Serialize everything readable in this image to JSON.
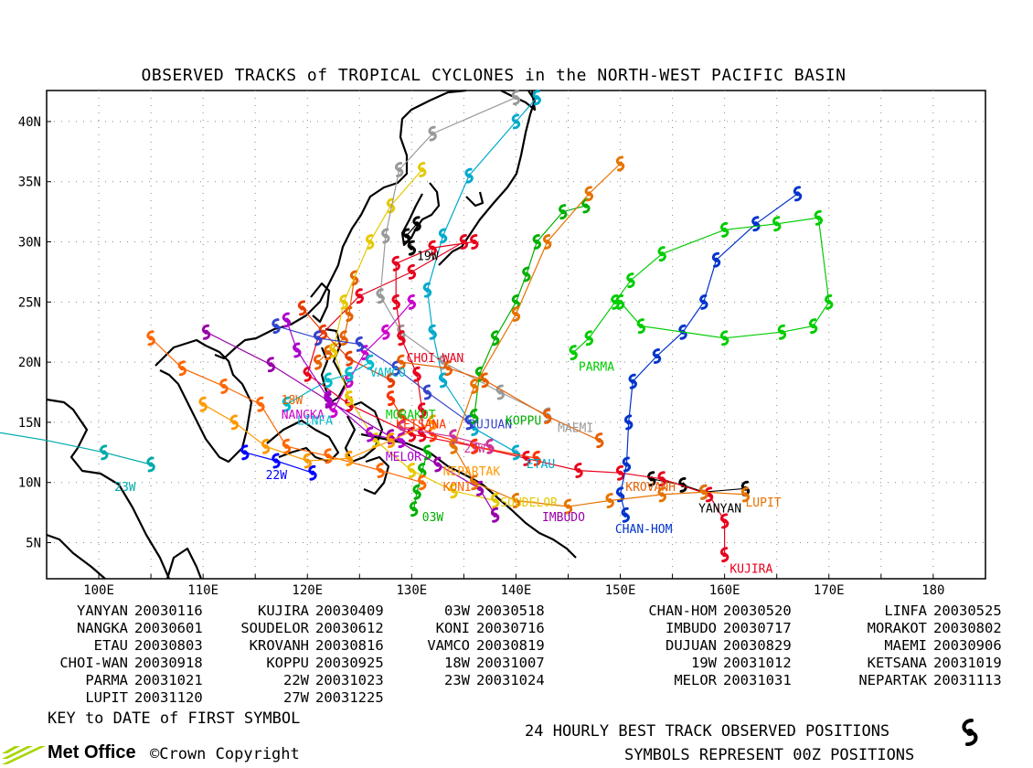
{
  "title": "OBSERVED TRACKS of TROPICAL CYCLONES in the NORTH-WEST PACIFIC BASIN",
  "lat_labels": [
    "40N",
    "35N",
    "30N",
    "25N",
    "20N",
    "15N",
    "10N",
    "5N"
  ],
  "lon_labels": [
    "100E",
    "110E",
    "120E",
    "130E",
    "140E",
    "150E",
    "160E",
    "170E",
    "180"
  ],
  "storms": [
    {
      "name": "YANYAN",
      "date": "20030116",
      "color": "#000000",
      "track": [
        [
          162,
          9.5
        ],
        [
          158,
          9.2
        ],
        [
          156,
          9.8
        ],
        [
          153,
          10.3
        ]
      ]
    },
    {
      "name": "KUJIRA",
      "date": "20030409",
      "color": "#e8001c",
      "track": [
        [
          160,
          4
        ],
        [
          160,
          6.8
        ],
        [
          158.5,
          9
        ],
        [
          154,
          10.3
        ],
        [
          150,
          10.8
        ],
        [
          146,
          11
        ],
        [
          141,
          12
        ],
        [
          136,
          13
        ],
        [
          130,
          14
        ],
        [
          124,
          16.5
        ],
        [
          120,
          19
        ],
        [
          121,
          22
        ],
        [
          125,
          25.5
        ],
        [
          130,
          27.5
        ],
        [
          135,
          30
        ]
      ]
    },
    {
      "name": "03W",
      "date": "20030518",
      "color": "#00b000",
      "track": [
        [
          130.2,
          7.8
        ],
        [
          130.5,
          9.2
        ],
        [
          131,
          11
        ],
        [
          131.5,
          12.5
        ]
      ]
    },
    {
      "name": "CHAN-HOM",
      "date": "20030520",
      "color": "#0033cc",
      "track": [
        [
          150.5,
          7.3
        ],
        [
          150,
          9
        ],
        [
          150.6,
          11.5
        ],
        [
          150.8,
          15
        ],
        [
          151.2,
          18.4
        ],
        [
          153.5,
          20.5
        ],
        [
          156,
          22.5
        ],
        [
          158,
          25
        ],
        [
          159.2,
          28.5
        ],
        [
          163,
          31.5
        ],
        [
          167,
          34
        ]
      ]
    },
    {
      "name": "LINFA",
      "date": "20030525",
      "color": "#e66000",
      "track": [
        [
          121,
          20
        ],
        [
          122,
          20.8
        ],
        [
          123.5,
          22
        ],
        [
          124,
          24
        ],
        [
          124.5,
          27
        ]
      ]
    },
    {
      "name": "NANGKA",
      "date": "20030601",
      "color": "#cc00cc",
      "track": [
        [
          122.5,
          16
        ],
        [
          124,
          18.5
        ],
        [
          125.5,
          20.8
        ],
        [
          127.5,
          22.5
        ],
        [
          130,
          25
        ]
      ]
    },
    {
      "name": "SOUDELOR",
      "date": "20030612",
      "color": "#e6c800",
      "track": [
        [
          138,
          8.5
        ],
        [
          134,
          9.3
        ],
        [
          130,
          11
        ],
        [
          126.5,
          13.5
        ],
        [
          124,
          17
        ],
        [
          122.5,
          21
        ],
        [
          123.5,
          25
        ],
        [
          126,
          30
        ],
        [
          128,
          33
        ],
        [
          131,
          36
        ]
      ]
    },
    {
      "name": "KONI",
      "date": "20030716",
      "color": "#ff6600",
      "track": [
        [
          131,
          10
        ],
        [
          127,
          11
        ],
        [
          122,
          12.2
        ],
        [
          118,
          13
        ],
        [
          115.5,
          16.5
        ],
        [
          112,
          18
        ],
        [
          108,
          19.5
        ],
        [
          105,
          22
        ]
      ]
    },
    {
      "name": "IMBUDO",
      "date": "20030717",
      "color": "#9900aa",
      "track": [
        [
          138,
          7.3
        ],
        [
          136.5,
          9.5
        ],
        [
          132.5,
          11.5
        ],
        [
          128,
          13.8
        ],
        [
          122,
          16.8
        ],
        [
          116.5,
          19.8
        ],
        [
          110.3,
          22.5
        ]
      ]
    },
    {
      "name": "MORAKOT",
      "date": "20030802",
      "color": "#e63c00",
      "track": [
        [
          128,
          18.5
        ],
        [
          124,
          20.3
        ],
        [
          121.5,
          22.5
        ],
        [
          119.5,
          24.5
        ]
      ]
    },
    {
      "name": "ETAU",
      "date": "20030803",
      "color": "#00aacc",
      "track": [
        [
          140,
          12.5
        ],
        [
          136,
          14.5
        ],
        [
          133,
          18.5
        ],
        [
          132,
          22.5
        ],
        [
          131.5,
          26
        ],
        [
          133,
          30.5
        ],
        [
          135.5,
          35.5
        ],
        [
          140,
          40
        ],
        [
          142,
          42
        ]
      ]
    },
    {
      "name": "VAMCO",
      "date": "20030819",
      "color": "#00bbcc",
      "track": [
        [
          126,
          20
        ],
        [
          124,
          19
        ],
        [
          122,
          18.5
        ],
        [
          118,
          16.5
        ]
      ]
    },
    {
      "name": "DUJUAN",
      "date": "20030829",
      "color": "#3344cc",
      "track": [
        [
          135.5,
          15
        ],
        [
          131.5,
          17.5
        ],
        [
          128.5,
          19.5
        ],
        [
          125,
          21.5
        ],
        [
          121,
          22
        ],
        [
          117,
          23
        ]
      ]
    },
    {
      "name": "MAEMI",
      "date": "20030906",
      "color": "#999999",
      "track": [
        [
          143,
          15.6
        ],
        [
          138.5,
          17.5
        ],
        [
          133,
          20
        ],
        [
          129,
          22.5
        ],
        [
          127,
          25.5
        ],
        [
          127.5,
          30.5
        ],
        [
          128.8,
          36
        ],
        [
          132,
          39
        ],
        [
          140,
          42
        ]
      ]
    },
    {
      "name": "CHOI-WAN",
      "date": "20030918",
      "color": "#e8001c",
      "track": [
        [
          131,
          14
        ],
        [
          131,
          16
        ],
        [
          130.5,
          19
        ],
        [
          129,
          22
        ],
        [
          128.5,
          25
        ],
        [
          128.5,
          28.2
        ],
        [
          132,
          29.5
        ],
        [
          136,
          30
        ]
      ]
    },
    {
      "name": "KOPPU",
      "date": "20030925",
      "color": "#00b000",
      "track": [
        [
          136,
          15.5
        ],
        [
          136.5,
          19
        ],
        [
          138,
          22
        ],
        [
          140,
          25
        ],
        [
          141,
          27.3
        ],
        [
          142,
          30
        ],
        [
          144.5,
          32.5
        ],
        [
          146.7,
          33
        ]
      ]
    },
    {
      "name": "KETSANA",
      "date": "20031019",
      "color": "#ff3300",
      "track": [
        [
          142,
          12
        ],
        [
          136,
          13
        ],
        [
          132,
          14
        ],
        [
          129,
          15.5
        ],
        [
          128,
          17
        ]
      ]
    },
    {
      "name": "PARMA",
      "date": "20031021",
      "color": "#00cc00",
      "track": [
        [
          145.5,
          20.8
        ],
        [
          147,
          22
        ],
        [
          149.5,
          25
        ],
        [
          151,
          26.8
        ],
        [
          154,
          29
        ],
        [
          160,
          31
        ],
        [
          165,
          31.5
        ],
        [
          169,
          32
        ],
        [
          170,
          25
        ],
        [
          168.5,
          23
        ],
        [
          165.5,
          22.5
        ],
        [
          160,
          22
        ],
        [
          152,
          23
        ],
        [
          150,
          25
        ]
      ]
    },
    {
      "name": "22W",
      "date": "20031023",
      "color": "#0000ff",
      "track": [
        [
          120.5,
          10.8
        ],
        [
          117,
          11.8
        ],
        [
          114,
          12.5
        ]
      ]
    },
    {
      "name": "27W",
      "date": "20031225",
      "color": "#cc3399",
      "track": [
        [
          137.5,
          13
        ],
        [
          134,
          13.8
        ],
        [
          129,
          14.5
        ]
      ]
    },
    {
      "name": "18W",
      "date": "20031007",
      "color": "#e66000",
      "track": [
        [
          148,
          13.5
        ],
        [
          143,
          15.5
        ],
        [
          137,
          18.5
        ],
        [
          133.5,
          19.5
        ],
        [
          129,
          20
        ]
      ]
    },
    {
      "name": "19W",
      "date": "20031012",
      "color": "#000000",
      "track": [
        [
          130,
          29.5
        ],
        [
          129.5,
          30.5
        ],
        [
          130.5,
          31.5
        ]
      ]
    },
    {
      "name": "23W",
      "date": "20031024",
      "color": "#00aaaa",
      "track": [
        [
          105,
          11.5
        ],
        [
          100.5,
          12.5
        ],
        [
          95,
          13.5
        ],
        [
          88,
          14.5
        ]
      ]
    },
    {
      "name": "MELOR",
      "date": "20031031",
      "color": "#aa00cc",
      "track": [
        [
          129,
          13.5
        ],
        [
          126,
          14
        ],
        [
          122,
          17
        ],
        [
          119,
          21
        ],
        [
          118,
          23.5
        ]
      ]
    },
    {
      "name": "NEPARTAK",
      "date": "20031113",
      "color": "#ff9900",
      "track": [
        [
          132,
          15
        ],
        [
          128,
          13.5
        ],
        [
          124,
          12
        ],
        [
          120,
          11.8
        ],
        [
          116,
          13
        ],
        [
          113,
          15
        ],
        [
          110,
          16.5
        ]
      ]
    },
    {
      "name": "LUPIT",
      "date": "20031120",
      "color": "#e67300",
      "track": [
        [
          162,
          9
        ],
        [
          158,
          9.2
        ],
        [
          154,
          9
        ],
        [
          149,
          8.5
        ],
        [
          145,
          8
        ],
        [
          140,
          8.5
        ],
        [
          136,
          10
        ],
        [
          134,
          13
        ],
        [
          136,
          18
        ],
        [
          140,
          24
        ],
        [
          143,
          30
        ],
        [
          147,
          34
        ],
        [
          150,
          36.5
        ]
      ]
    }
  ],
  "track_labels": [
    {
      "text": "YANYAN",
      "color": "#000000",
      "lon": 157.5,
      "lat": 7.5
    },
    {
      "text": "KUJIRA",
      "color": "#e8001c",
      "lon": 160.5,
      "lat": 2.5
    },
    {
      "text": "03W",
      "color": "#00b000",
      "lon": 131,
      "lat": 6.8
    },
    {
      "text": "CHAN-HOM",
      "color": "#0033cc",
      "lon": 149.5,
      "lat": 5.8
    },
    {
      "text": "LUPIT",
      "color": "#e67300",
      "lon": 162,
      "lat": 8
    },
    {
      "text": "KROVANH",
      "color": "#e66000",
      "lon": 150.5,
      "lat": 9.3
    },
    {
      "text": "SOUDELOR",
      "color": "#e6c800",
      "lon": 138.5,
      "lat": 8
    },
    {
      "text": "IMBUDO",
      "color": "#9900aa",
      "lon": 142.5,
      "lat": 6.8
    },
    {
      "text": "KONI",
      "color": "#ff6600",
      "lon": 133,
      "lat": 9.3
    },
    {
      "text": "NEPARTAK",
      "color": "#ff9900",
      "lon": 133,
      "lat": 10.6
    },
    {
      "text": "MELOR",
      "color": "#aa00cc",
      "lon": 127.5,
      "lat": 11.8
    },
    {
      "text": "27W",
      "color": "#cc3399",
      "lon": 135,
      "lat": 12.5
    },
    {
      "text": "ETAU",
      "color": "#00aacc",
      "lon": 141,
      "lat": 11.2
    },
    {
      "text": "KETSANA",
      "color": "#ff3300",
      "lon": 128.5,
      "lat": 14.5
    },
    {
      "text": "DUJUAN",
      "color": "#3344cc",
      "lon": 135.5,
      "lat": 14.5
    },
    {
      "text": "MORAKOT",
      "color": "#00cc00",
      "lon": 127.5,
      "lat": 15.3
    },
    {
      "text": "KOPPU",
      "color": "#00b000",
      "lon": 139,
      "lat": 14.8
    },
    {
      "text": "MAEMI",
      "color": "#999999",
      "lon": 144,
      "lat": 14.2
    },
    {
      "text": "PARMA",
      "color": "#00cc00",
      "lon": 146,
      "lat": 19.3
    },
    {
      "text": "CHOI-WAN",
      "color": "#e8001c",
      "lon": 129.5,
      "lat": 20
    },
    {
      "text": "VAMCO",
      "color": "#00bbcc",
      "lon": 126,
      "lat": 18.8
    },
    {
      "text": "19W",
      "color": "#000000",
      "lon": 130.5,
      "lat": 28.5
    },
    {
      "text": "18W",
      "color": "#e66000",
      "lon": 117.5,
      "lat": 16.5
    },
    {
      "text": "NANGKA",
      "color": "#cc00cc",
      "lon": 117.5,
      "lat": 15.3
    },
    {
      "text": "LINFA",
      "color": "#00bbcc",
      "lon": 119,
      "lat": 14.8
    },
    {
      "text": "22W",
      "color": "#0000ff",
      "lon": 116,
      "lat": 10.3
    },
    {
      "text": "23W",
      "color": "#00aaaa",
      "lon": 101.5,
      "lat": 9.3
    }
  ],
  "key": [
    [
      "YANYAN",
      "20030116",
      "KUJIRA",
      "20030409",
      "03W",
      "20030518",
      "CHAN-HOM",
      "20030520",
      "LINFA",
      "20030525"
    ],
    [
      "NANGKA",
      "20030601",
      "SOUDELOR",
      "20030612",
      "KONI",
      "20030716",
      "IMBUDO",
      "20030717",
      "MORAKOT",
      "20030802"
    ],
    [
      "ETAU",
      "20030803",
      "KROVANH",
      "20030816",
      "VAMCO",
      "20030819",
      "DUJUAN",
      "20030829",
      "MAEMI",
      "20030906"
    ],
    [
      "CHOI-WAN",
      "20030918",
      "KOPPU",
      "20030925",
      "18W",
      "20031007",
      "19W",
      "20031012",
      "KETSANA",
      "20031019"
    ],
    [
      "PARMA",
      "20031021",
      "22W",
      "20031023",
      "23W",
      "20031024",
      "MELOR",
      "20031031",
      "NEPARTAK",
      "20031113"
    ],
    [
      "LUPIT",
      "20031120",
      "27W",
      "20031225"
    ]
  ],
  "footer": {
    "key_to_date": "KEY to DATE of FIRST SYMBOL",
    "best_track": "24 HOURLY BEST TRACK OBSERVED POSITIONS",
    "symbols": "SYMBOLS REPRESENT 00Z POSITIONS",
    "logo": "Met Office",
    "copyright": "©Crown Copyright"
  }
}
